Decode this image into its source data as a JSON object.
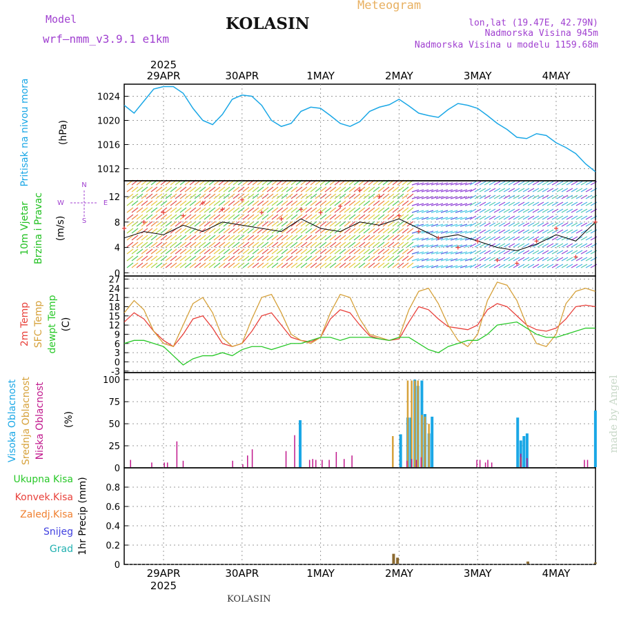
{
  "header": {
    "model_label": "Model",
    "model_name": "wrf—nmm_v3.9.1  e1km",
    "title": "KOLASIN",
    "product": "Meteogram",
    "coords": "lon,lat (19.47E, 42.79N)",
    "elevation": "Nadmorska Visina 945m",
    "model_elevation": "Nadmorska Visina u modelu 1159.68m",
    "year": "2025",
    "footer": "KOLASIN",
    "watermark": "made by Angel"
  },
  "colors": {
    "pressure": "#1aa7e6",
    "temp2m": "#e8403a",
    "sfc": "#d6a13a",
    "dewpt": "#28c828",
    "high_cloud": "#1aa7e6",
    "mid_cloud": "#d6a13a",
    "low_cloud": "#c0178c",
    "total_precip": "#28c828",
    "conv_precip": "#e8403a",
    "frozen_precip": "#f08030",
    "snow": "#4040e0",
    "grad": "#20b0b0",
    "wind_label": "#20c020",
    "direction_legend": "#a040d0",
    "header_purple": "#a040d0",
    "meteogram": "#e8b060"
  },
  "chart_data": [
    {
      "type": "line",
      "panel": "pressure",
      "labels": [
        "Pritisak na nivou mora",
        "(hPa)"
      ],
      "x_ticks": [
        "29APR",
        "30APR",
        "1MAY",
        "2MAY",
        "3MAY",
        "4MAY"
      ],
      "x_unit": "days from start (3-hourly)",
      "ylim": [
        1010,
        1026
      ],
      "y_ticks": [
        1012,
        1016,
        1020,
        1024
      ],
      "series": [
        {
          "x": [
            0,
            0.125,
            0.25,
            0.375,
            0.5,
            0.625,
            0.75,
            0.875,
            1,
            1.125,
            1.25,
            1.375,
            1.5,
            1.625,
            1.75,
            1.875,
            2,
            2.125,
            2.25,
            2.375,
            2.5,
            2.625,
            2.75,
            2.875,
            3,
            3.125,
            3.25,
            3.375,
            3.5,
            3.625,
            3.75,
            3.875,
            4,
            4.125,
            4.25,
            4.375,
            4.5,
            4.625,
            4.75,
            4.875,
            5,
            5.125,
            5.25,
            5.375,
            5.5,
            5.625,
            5.75,
            5.875,
            6
          ],
          "values": [
            1022.5,
            1021.2,
            1023.2,
            1025.2,
            1025.6,
            1025.6,
            1024.5,
            1022.0,
            1020.0,
            1019.3,
            1021.0,
            1023.5,
            1024.2,
            1024.0,
            1022.5,
            1020.0,
            1019.0,
            1019.5,
            1021.5,
            1022.2,
            1022.0,
            1020.8,
            1019.5,
            1019.0,
            1019.8,
            1021.5,
            1022.2,
            1022.6,
            1023.5,
            1022.4,
            1021.2,
            1020.8,
            1020.5,
            1021.8,
            1022.8,
            1022.5,
            1022.0,
            1020.8,
            1019.5,
            1018.5,
            1017.2,
            1017.0,
            1017.8,
            1017.5,
            1016.3,
            1015.5,
            1014.5,
            1012.8,
            1011.5
          ]
        }
      ]
    },
    {
      "type": "scatter",
      "panel": "wind",
      "labels": [
        "10m Vjetar",
        "Brzina i Pravac",
        "(m/s)"
      ],
      "direction_legend": [
        "N",
        "W",
        "E",
        "S"
      ],
      "ylim": [
        -0.5,
        14.5
      ],
      "y_ticks": [
        0,
        4,
        8,
        12
      ],
      "x": [
        0,
        0.25,
        0.5,
        0.75,
        1,
        1.25,
        1.5,
        1.75,
        2,
        2.25,
        2.5,
        2.75,
        3,
        3.25,
        3.5,
        3.75,
        4,
        4.25,
        4.5,
        4.75,
        5,
        5.25,
        5.5,
        5.75,
        6
      ],
      "series": [
        {
          "values": [
            5.5,
            6.5,
            6.0,
            7.5,
            6.5,
            8.0,
            7.5,
            7.0,
            6.5,
            8.5,
            7.0,
            6.5,
            8.0,
            7.5,
            8.5,
            7.0,
            5.5,
            6.0,
            5.0,
            4.0,
            3.5,
            4.5,
            6.0,
            5.0,
            8.0
          ]
        },
        {
          "values": [
            7,
            8,
            9.5,
            9,
            11,
            10,
            11.5,
            9.5,
            8.5,
            10,
            9.5,
            10.5,
            13,
            12,
            9,
            6.5,
            5.5,
            4,
            5,
            2,
            1.5,
            5,
            7,
            2.5,
            8
          ]
        }
      ]
    },
    {
      "type": "line",
      "panel": "temperature",
      "labels": [
        "2m Temp",
        "SFC Temp",
        "dewpt Temp",
        "(C)"
      ],
      "ylim": [
        -3.5,
        28
      ],
      "y_ticks": [
        -3,
        0,
        3,
        6,
        9,
        12,
        15,
        18,
        21,
        24,
        27
      ],
      "series": [
        {
          "name": "2m Temp",
          "x": [
            0,
            0.125,
            0.25,
            0.375,
            0.5,
            0.625,
            0.75,
            0.875,
            1,
            1.125,
            1.25,
            1.375,
            1.5,
            1.625,
            1.75,
            1.875,
            2,
            2.125,
            2.25,
            2.375,
            2.5,
            2.625,
            2.75,
            2.875,
            3,
            3.125,
            3.25,
            3.375,
            3.5,
            3.625,
            3.75,
            3.875,
            4,
            4.125,
            4.25,
            4.375,
            4.5,
            4.625,
            4.75,
            4.875,
            5,
            5.125,
            5.25,
            5.375,
            5.5,
            5.625,
            5.75,
            5.875,
            6
          ],
          "values": [
            13,
            16,
            14,
            10,
            7,
            5,
            9,
            14,
            15,
            11,
            6,
            5,
            6,
            10,
            15,
            16,
            12,
            8,
            7,
            6.5,
            8,
            14,
            17,
            16,
            12,
            8.5,
            7.5,
            7,
            7.5,
            13,
            18,
            17,
            14,
            11.5,
            11,
            10.5,
            12,
            17,
            19,
            18,
            15,
            12,
            10.5,
            10,
            11,
            14,
            18,
            18.5,
            18
          ]
        },
        {
          "name": "SFC Temp",
          "x": [
            0,
            0.125,
            0.25,
            0.375,
            0.5,
            0.625,
            0.75,
            0.875,
            1,
            1.125,
            1.25,
            1.375,
            1.5,
            1.625,
            1.75,
            1.875,
            2,
            2.125,
            2.25,
            2.375,
            2.5,
            2.625,
            2.75,
            2.875,
            3,
            3.125,
            3.25,
            3.375,
            3.5,
            3.625,
            3.75,
            3.875,
            4,
            4.125,
            4.25,
            4.375,
            4.5,
            4.625,
            4.75,
            4.875,
            5,
            5.125,
            5.25,
            5.375,
            5.5,
            5.625,
            5.75,
            5.875,
            6
          ],
          "values": [
            16,
            20,
            17,
            10,
            6,
            5,
            12,
            19,
            21,
            16,
            8,
            5,
            6,
            14,
            21,
            22,
            16,
            9,
            7,
            6,
            8,
            16,
            22,
            21,
            14,
            9,
            8,
            7,
            8,
            17,
            23,
            24,
            19,
            12,
            7,
            5,
            9,
            20,
            26,
            25,
            20,
            12,
            6,
            5,
            9,
            19,
            23,
            24,
            23
          ]
        },
        {
          "name": "dewpt Temp",
          "x": [
            0,
            0.125,
            0.25,
            0.375,
            0.5,
            0.625,
            0.75,
            0.875,
            1,
            1.125,
            1.25,
            1.375,
            1.5,
            1.625,
            1.75,
            1.875,
            2,
            2.125,
            2.25,
            2.375,
            2.5,
            2.625,
            2.75,
            2.875,
            3,
            3.125,
            3.25,
            3.375,
            3.5,
            3.625,
            3.75,
            3.875,
            4,
            4.125,
            4.25,
            4.375,
            4.5,
            4.625,
            4.75,
            4.875,
            5,
            5.125,
            5.25,
            5.375,
            5.5,
            5.625,
            5.75,
            5.875,
            6
          ],
          "values": [
            6,
            7,
            7,
            6,
            5,
            2,
            -1,
            1,
            2,
            2,
            3,
            2,
            4,
            5,
            5,
            4,
            5,
            6,
            6,
            7,
            8,
            8,
            7,
            8,
            8,
            8,
            7.5,
            7,
            8,
            8,
            6,
            4,
            3,
            5,
            6,
            7,
            7,
            9,
            12,
            12.5,
            13,
            11,
            9,
            8,
            8,
            9,
            10,
            11,
            11
          ]
        }
      ]
    },
    {
      "type": "bar",
      "panel": "clouds",
      "labels": [
        "Visoka Oblacnost",
        "Srednja Oblacnost",
        "Niska Oblacnost",
        "(%)"
      ],
      "ylim": [
        0,
        108
      ],
      "y_ticks": [
        0,
        25,
        50,
        75,
        100
      ],
      "series": [
        {
          "name": "Visoka Oblacnost",
          "x": [
            2.24,
            3.52,
            3.61,
            3.65,
            3.7,
            3.74,
            3.79,
            3.83,
            3.88,
            3.92,
            5.01,
            5.05,
            5.09,
            5.13,
            6.0
          ],
          "values": [
            54,
            38,
            57,
            57,
            100,
            93,
            99,
            61,
            39,
            58,
            57,
            31,
            36,
            39,
            65
          ]
        },
        {
          "name": "Srednja Oblacnost",
          "x": [
            3.42,
            3.61,
            3.66,
            3.7,
            3.74,
            3.79,
            3.83,
            3.88,
            5.05
          ],
          "values": [
            36,
            99,
            99,
            99,
            99,
            60,
            58,
            50,
            12
          ]
        },
        {
          "name": "Niska Oblacnost",
          "x": [
            0.08,
            0.35,
            0.51,
            0.55,
            0.67,
            0.75,
            1.38,
            1.51,
            1.57,
            1.63,
            2.06,
            2.17,
            2.36,
            2.4,
            2.44,
            2.52,
            2.61,
            2.7,
            2.8,
            2.9,
            3.6,
            3.66,
            3.72,
            3.78,
            4.49,
            4.53,
            4.6,
            4.63,
            4.68,
            5.05,
            5.13,
            5.86,
            5.9
          ],
          "values": [
            9,
            6,
            6,
            6,
            30,
            8,
            8,
            4,
            14,
            21,
            19,
            37,
            9,
            10,
            9,
            9,
            9,
            18,
            10,
            14,
            8,
            10,
            9,
            12,
            9,
            9,
            6,
            9,
            6,
            16,
            11,
            9,
            9
          ]
        }
      ]
    },
    {
      "type": "bar",
      "panel": "precipitation",
      "labels": [
        "Ukupna Kisa",
        "Konvek.Kisa",
        "Zaledj.Kisa",
        "Snijeg",
        "Grad",
        "1hr Precip (mm)"
      ],
      "ylim": [
        0,
        1.0
      ],
      "y_ticks": [
        0,
        0.2,
        0.4,
        0.6,
        0.8
      ],
      "series": [
        {
          "name": "Ukupna Kisa",
          "x": [
            3.43,
            3.48,
            5.14,
            6.0
          ],
          "values": [
            0.11,
            0.07,
            0.03,
            0.02
          ]
        }
      ]
    }
  ]
}
